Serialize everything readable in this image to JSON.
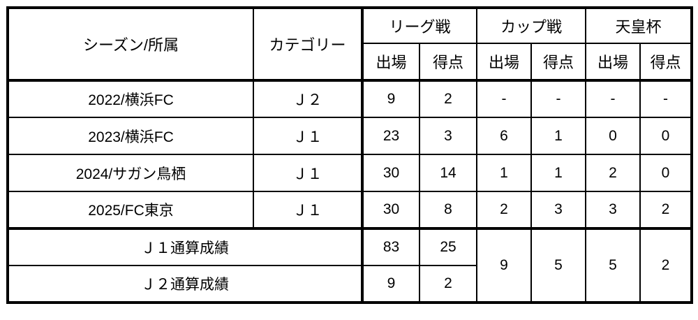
{
  "header": {
    "season": "シーズン/所属",
    "category": "カテゴリー",
    "groups": [
      "リーグ戦",
      "カップ戦",
      "天皇杯"
    ],
    "apps": "出場",
    "goals": "得点"
  },
  "rows": [
    {
      "season": "2022/横浜FC",
      "category": "Ｊ２",
      "values": [
        "9",
        "2",
        "-",
        "-",
        "-",
        "-"
      ]
    },
    {
      "season": "2023/横浜FC",
      "category": "Ｊ１",
      "values": [
        "23",
        "3",
        "6",
        "1",
        "0",
        "0"
      ]
    },
    {
      "season": "2024/サガン鳥栖",
      "category": "Ｊ１",
      "values": [
        "30",
        "14",
        "1",
        "1",
        "2",
        "0"
      ]
    },
    {
      "season": "2025/FC東京",
      "category": "Ｊ１",
      "values": [
        "30",
        "8",
        "2",
        "3",
        "3",
        "2"
      ]
    }
  ],
  "totals": {
    "j1": {
      "label": "Ｊ１通算成績",
      "league_apps": "83",
      "league_goals": "25"
    },
    "j2": {
      "label": "Ｊ２通算成績",
      "league_apps": "9",
      "league_goals": "2"
    },
    "cup_apps": "9",
    "cup_goals": "5",
    "emperor_apps": "5",
    "emperor_goals": "2"
  }
}
